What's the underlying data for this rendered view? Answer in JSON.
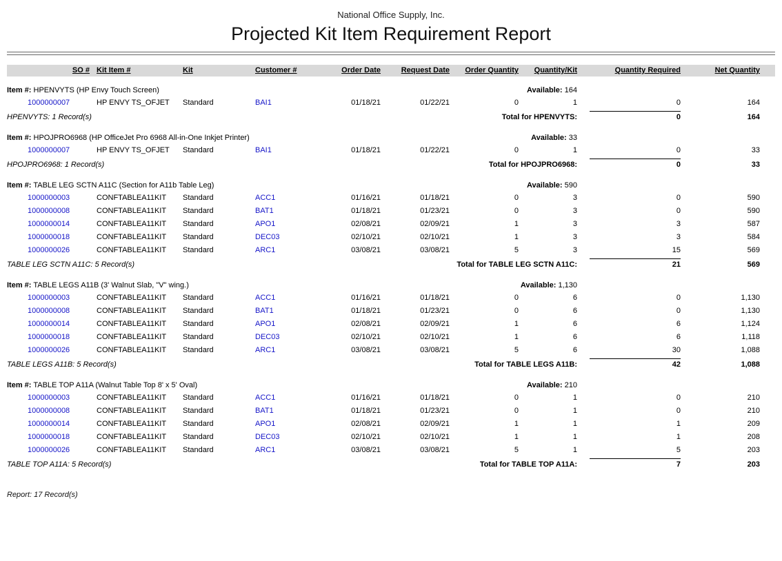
{
  "report": {
    "company": "National Office Supply, Inc.",
    "title": "Projected Kit Item Requirement Report",
    "footer": "Report: 17 Record(s)"
  },
  "columns": [
    "SO #",
    "Kit Item #",
    "Kit",
    "Customer #",
    "Order Date",
    "Request Date",
    "Order Quantity",
    "Quantity/Kit",
    "Quantity Required",
    "Net Quantity"
  ],
  "link_color": "#1414c8",
  "header_bar_color": "#d9d9d9",
  "groups": [
    {
      "item_label": "Item #:",
      "item_text": "HPENVYTS (HP Envy Touch Screen)",
      "available_label": "Available:",
      "available": "164",
      "rows": [
        {
          "so": "1000000007",
          "kit_item": "HP ENVY TS_OFJET",
          "kit": "Standard",
          "customer": "BAI1",
          "order_date": "01/18/21",
          "request_date": "01/22/21",
          "order_qty": "0",
          "qty_kit": "1",
          "qty_required": "0",
          "net_qty": "164"
        }
      ],
      "records_label": "HPENVYTS: 1 Record(s)",
      "total_label": "Total for HPENVYTS:",
      "total_qty_required": "0",
      "total_net": "164"
    },
    {
      "item_label": "Item #:",
      "item_text": "HPOJPRO6968 (HP OfficeJet Pro 6968 All-in-One Inkjet Printer)",
      "available_label": "Available:",
      "available": "33",
      "rows": [
        {
          "so": "1000000007",
          "kit_item": "HP ENVY TS_OFJET",
          "kit": "Standard",
          "customer": "BAI1",
          "order_date": "01/18/21",
          "request_date": "01/22/21",
          "order_qty": "0",
          "qty_kit": "1",
          "qty_required": "0",
          "net_qty": "33"
        }
      ],
      "records_label": "HPOJPRO6968: 1 Record(s)",
      "total_label": "Total for HPOJPRO6968:",
      "total_qty_required": "0",
      "total_net": "33"
    },
    {
      "item_label": "Item #:",
      "item_text": "TABLE LEG SCTN A11C (Section for A11b Table Leg)",
      "available_label": "Available:",
      "available": "590",
      "rows": [
        {
          "so": "1000000003",
          "kit_item": "CONFTABLEA11KIT",
          "kit": "Standard",
          "customer": "ACC1",
          "order_date": "01/16/21",
          "request_date": "01/18/21",
          "order_qty": "0",
          "qty_kit": "3",
          "qty_required": "0",
          "net_qty": "590"
        },
        {
          "so": "1000000008",
          "kit_item": "CONFTABLEA11KIT",
          "kit": "Standard",
          "customer": "BAT1",
          "order_date": "01/18/21",
          "request_date": "01/23/21",
          "order_qty": "0",
          "qty_kit": "3",
          "qty_required": "0",
          "net_qty": "590"
        },
        {
          "so": "1000000014",
          "kit_item": "CONFTABLEA11KIT",
          "kit": "Standard",
          "customer": "APO1",
          "order_date": "02/08/21",
          "request_date": "02/09/21",
          "order_qty": "1",
          "qty_kit": "3",
          "qty_required": "3",
          "net_qty": "587"
        },
        {
          "so": "1000000018",
          "kit_item": "CONFTABLEA11KIT",
          "kit": "Standard",
          "customer": "DEC03",
          "order_date": "02/10/21",
          "request_date": "02/10/21",
          "order_qty": "1",
          "qty_kit": "3",
          "qty_required": "3",
          "net_qty": "584"
        },
        {
          "so": "1000000026",
          "kit_item": "CONFTABLEA11KIT",
          "kit": "Standard",
          "customer": "ARC1",
          "order_date": "03/08/21",
          "request_date": "03/08/21",
          "order_qty": "5",
          "qty_kit": "3",
          "qty_required": "15",
          "net_qty": "569"
        }
      ],
      "records_label": "TABLE LEG SCTN A11C: 5 Record(s)",
      "total_label": "Total for TABLE LEG SCTN A11C:",
      "total_qty_required": "21",
      "total_net": "569"
    },
    {
      "item_label": "Item #:",
      "item_text": "TABLE LEGS A11B (3' Walnut Slab, \"V\" wing.)",
      "available_label": "Available:",
      "available": "1,130",
      "rows": [
        {
          "so": "1000000003",
          "kit_item": "CONFTABLEA11KIT",
          "kit": "Standard",
          "customer": "ACC1",
          "order_date": "01/16/21",
          "request_date": "01/18/21",
          "order_qty": "0",
          "qty_kit": "6",
          "qty_required": "0",
          "net_qty": "1,130"
        },
        {
          "so": "1000000008",
          "kit_item": "CONFTABLEA11KIT",
          "kit": "Standard",
          "customer": "BAT1",
          "order_date": "01/18/21",
          "request_date": "01/23/21",
          "order_qty": "0",
          "qty_kit": "6",
          "qty_required": "0",
          "net_qty": "1,130"
        },
        {
          "so": "1000000014",
          "kit_item": "CONFTABLEA11KIT",
          "kit": "Standard",
          "customer": "APO1",
          "order_date": "02/08/21",
          "request_date": "02/09/21",
          "order_qty": "1",
          "qty_kit": "6",
          "qty_required": "6",
          "net_qty": "1,124"
        },
        {
          "so": "1000000018",
          "kit_item": "CONFTABLEA11KIT",
          "kit": "Standard",
          "customer": "DEC03",
          "order_date": "02/10/21",
          "request_date": "02/10/21",
          "order_qty": "1",
          "qty_kit": "6",
          "qty_required": "6",
          "net_qty": "1,118"
        },
        {
          "so": "1000000026",
          "kit_item": "CONFTABLEA11KIT",
          "kit": "Standard",
          "customer": "ARC1",
          "order_date": "03/08/21",
          "request_date": "03/08/21",
          "order_qty": "5",
          "qty_kit": "6",
          "qty_required": "30",
          "net_qty": "1,088"
        }
      ],
      "records_label": "TABLE LEGS A11B: 5 Record(s)",
      "total_label": "Total for TABLE LEGS A11B:",
      "total_qty_required": "42",
      "total_net": "1,088"
    },
    {
      "item_label": "Item #:",
      "item_text": "TABLE TOP A11A (Walnut Table Top 8' x 5' Oval)",
      "available_label": "Available:",
      "available": "210",
      "rows": [
        {
          "so": "1000000003",
          "kit_item": "CONFTABLEA11KIT",
          "kit": "Standard",
          "customer": "ACC1",
          "order_date": "01/16/21",
          "request_date": "01/18/21",
          "order_qty": "0",
          "qty_kit": "1",
          "qty_required": "0",
          "net_qty": "210"
        },
        {
          "so": "1000000008",
          "kit_item": "CONFTABLEA11KIT",
          "kit": "Standard",
          "customer": "BAT1",
          "order_date": "01/18/21",
          "request_date": "01/23/21",
          "order_qty": "0",
          "qty_kit": "1",
          "qty_required": "0",
          "net_qty": "210"
        },
        {
          "so": "1000000014",
          "kit_item": "CONFTABLEA11KIT",
          "kit": "Standard",
          "customer": "APO1",
          "order_date": "02/08/21",
          "request_date": "02/09/21",
          "order_qty": "1",
          "qty_kit": "1",
          "qty_required": "1",
          "net_qty": "209"
        },
        {
          "so": "1000000018",
          "kit_item": "CONFTABLEA11KIT",
          "kit": "Standard",
          "customer": "DEC03",
          "order_date": "02/10/21",
          "request_date": "02/10/21",
          "order_qty": "1",
          "qty_kit": "1",
          "qty_required": "1",
          "net_qty": "208"
        },
        {
          "so": "1000000026",
          "kit_item": "CONFTABLEA11KIT",
          "kit": "Standard",
          "customer": "ARC1",
          "order_date": "03/08/21",
          "request_date": "03/08/21",
          "order_qty": "5",
          "qty_kit": "1",
          "qty_required": "5",
          "net_qty": "203"
        }
      ],
      "records_label": "TABLE TOP A11A: 5 Record(s)",
      "total_label": "Total for TABLE TOP A11A:",
      "total_qty_required": "7",
      "total_net": "203"
    }
  ]
}
